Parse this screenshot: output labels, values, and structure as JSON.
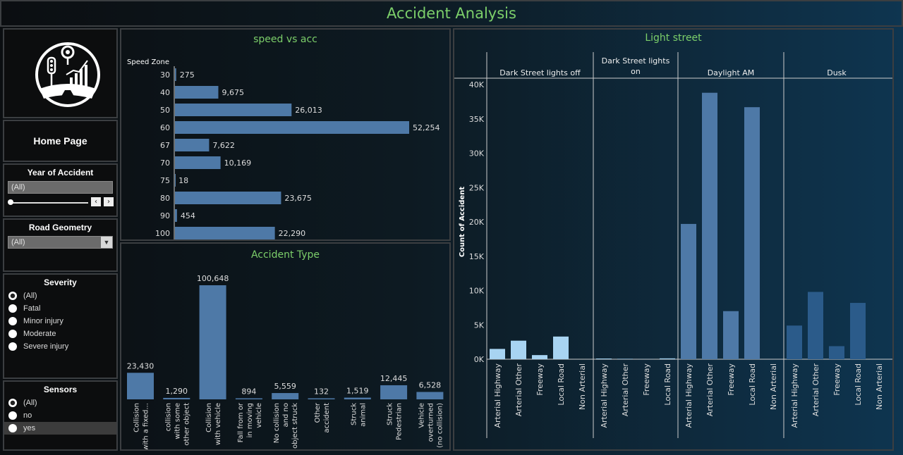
{
  "header": {
    "title": "Accident Analysis"
  },
  "sidebar": {
    "home_label": "Home Page",
    "year": {
      "title": "Year of Accident",
      "value": "(All)"
    },
    "road": {
      "title": "Road Geometry",
      "value": "(All)"
    },
    "severity": {
      "title": "Severity",
      "options": [
        "(All)",
        "Fatal",
        "Minor injury",
        "Moderate",
        "Severe injury"
      ],
      "selected": 0
    },
    "sensors": {
      "title": "Sensors",
      "options": [
        "(All)",
        "no",
        "yes"
      ],
      "selected": 0,
      "highlighted": 2
    }
  },
  "colors": {
    "bar": "#4e79a7",
    "light_bar": "#a8d4f2",
    "dusk_bar": "#2b5b8a",
    "title": "#7ccf6a"
  },
  "chart_data": [
    {
      "type": "bar",
      "title": "speed vs acc",
      "ylabel": "Speed Zone",
      "categories": [
        "30",
        "40",
        "50",
        "60",
        "67",
        "70",
        "75",
        "80",
        "90",
        "100"
      ],
      "values": [
        275,
        9675,
        26013,
        52254,
        7622,
        10169,
        18,
        23675,
        454,
        22290
      ],
      "value_labels": [
        "275",
        "9,675",
        "26,013",
        "52,254",
        "7,622",
        "10,169",
        "18",
        "23,675",
        "454",
        "22,290"
      ],
      "orientation": "horizontal"
    },
    {
      "type": "bar",
      "title": "Accident Type",
      "categories": [
        "Collision with a fixed...",
        "collision with some other object",
        "Collision with vehicle",
        "Fall from or in moving vehicle",
        "No collision and no object struck",
        "Other accident",
        "Struck animal",
        "Struck Pedestrian",
        "Vehicle overturned (no collision)"
      ],
      "category_lines": [
        [
          "Collision",
          "with a fixed..."
        ],
        [
          "collision",
          "with some",
          "other object"
        ],
        [
          "Collision",
          "with vehicle"
        ],
        [
          "Fall from or",
          "in moving",
          "vehicle"
        ],
        [
          "No collision",
          "and no",
          "object struck"
        ],
        [
          "Other",
          "accident"
        ],
        [
          "Struck",
          "animal"
        ],
        [
          "Struck",
          "Pedestrian"
        ],
        [
          "Vehicle",
          "overturned",
          "(no collision)"
        ]
      ],
      "values": [
        23430,
        1290,
        100648,
        894,
        5559,
        132,
        1519,
        12445,
        6528
      ],
      "value_labels": [
        "23,430",
        "1,290",
        "100,648",
        "894",
        "5,559",
        "132",
        "1,519",
        "12,445",
        "6,528"
      ]
    },
    {
      "type": "bar",
      "title": "Light street",
      "ylabel": "Count of Accident",
      "ylim": [
        0,
        40000
      ],
      "yticks": [
        0,
        5000,
        10000,
        15000,
        20000,
        25000,
        30000,
        35000,
        40000
      ],
      "ytick_labels": [
        "0K",
        "5K",
        "10K",
        "15K",
        "20K",
        "25K",
        "30K",
        "35K",
        "40K"
      ],
      "groups": [
        {
          "name": "Dark Street lights off",
          "name_lines": [
            "Dark Street lights off"
          ],
          "categories": [
            "Arterial Highway",
            "Arterial Other",
            "Freeway",
            "Local Road",
            "Non Arterial"
          ],
          "values": [
            1500,
            2700,
            600,
            3300,
            0
          ],
          "color": "#a8d4f2"
        },
        {
          "name": "Dark Street lights on",
          "name_lines": [
            "Dark Street lights",
            "on"
          ],
          "categories": [
            "Arterial Highway",
            "Arterial Other",
            "Freeway",
            "Local Road"
          ],
          "values": [
            100,
            60,
            20,
            120
          ],
          "color": "#a8d4f2"
        },
        {
          "name": "Daylight AM",
          "name_lines": [
            "Daylight AM"
          ],
          "categories": [
            "Arterial Highway",
            "Arterial Other",
            "Freeway",
            "Local Road",
            "Non Arterial"
          ],
          "values": [
            19700,
            38800,
            7000,
            36700,
            0
          ],
          "color": "#4e79a7"
        },
        {
          "name": "Dusk",
          "name_lines": [
            "Dusk"
          ],
          "categories": [
            "Arterial Highway",
            "Arterial Other",
            "Freeway",
            "Local Road",
            "Non Arterial"
          ],
          "values": [
            4900,
            9800,
            1900,
            8200,
            0
          ],
          "color": "#2b5b8a"
        }
      ]
    }
  ]
}
